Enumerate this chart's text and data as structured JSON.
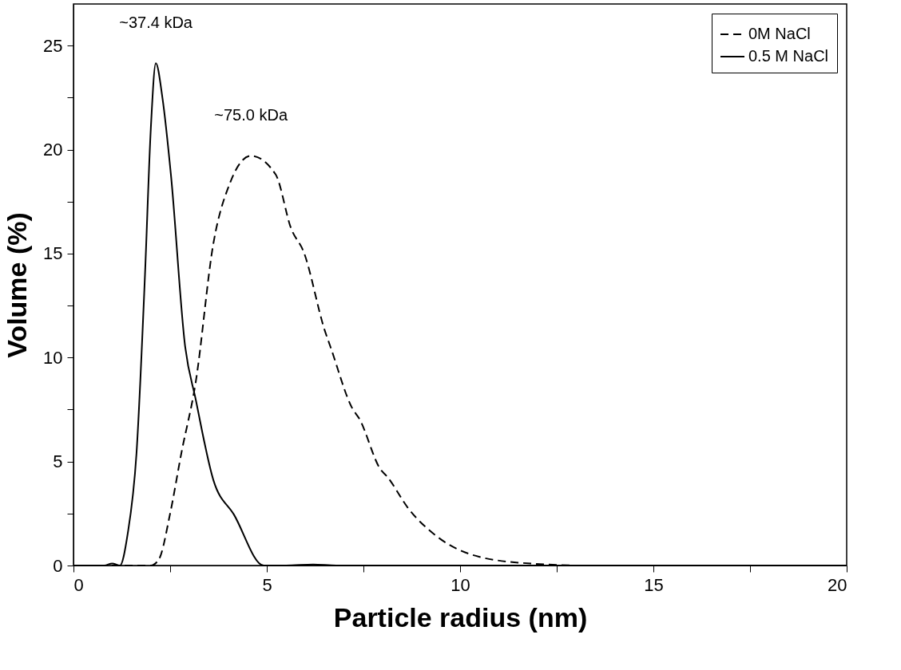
{
  "chart_data": {
    "type": "line",
    "xlabel": "Particle radius (nm)",
    "ylabel": "Volume (%)",
    "xlim": [
      0,
      20
    ],
    "ylim": [
      0,
      27
    ],
    "xticks": [
      0,
      {
        "value": 2.5,
        "label": null
      },
      5,
      {
        "value": 7.5,
        "label": null
      },
      10,
      {
        "value": 12.5,
        "label": null
      },
      15,
      {
        "value": 17.5,
        "label": null
      },
      20
    ],
    "yticks": [
      0,
      {
        "value": 2.5,
        "label": null
      },
      5,
      {
        "value": 7.5,
        "label": null
      },
      10,
      {
        "value": 12.5,
        "label": null
      },
      15,
      {
        "value": 17.5,
        "label": null
      },
      20,
      {
        "value": 22.5,
        "label": null
      },
      25
    ],
    "grid": false,
    "legend": "top right",
    "marker": "none",
    "series": [
      {
        "name": "0M NaCl",
        "color": "#000000",
        "line_style": "dashed",
        "x": [
          0,
          1,
          2,
          2.21,
          2.5,
          2.79,
          3.16,
          3.62,
          4.05,
          4.59,
          5.23,
          5.63,
          5.95,
          6.5,
          6.65,
          7.23,
          7.38,
          7.95,
          8.1,
          8.68,
          9.4,
          10.49,
          11.94,
          12.5,
          13,
          15,
          20
        ],
        "values": [
          0,
          0,
          0,
          0.3,
          2.5,
          5.4,
          8.8,
          15.5,
          18.4,
          19.7,
          18.8,
          16.2,
          15.1,
          11.3,
          10.5,
          7.5,
          7.1,
          4.6,
          4.3,
          2.7,
          1.4,
          0.42,
          0.08,
          0.03,
          0,
          0,
          0
        ]
      },
      {
        "name": "0.5 M NaCl",
        "color": "#000000",
        "line_style": "solid",
        "x": [
          0,
          0.8,
          1.0,
          1.2,
          1.4,
          1.63,
          1.85,
          2.0,
          2.13,
          2.3,
          2.52,
          2.89,
          3.16,
          3.62,
          4.15,
          4.92,
          5.5,
          6.2,
          6.8,
          10,
          20
        ],
        "values": [
          0,
          0,
          0.1,
          0,
          1.5,
          5.4,
          14,
          21,
          24.15,
          22.5,
          18.8,
          10.5,
          8.0,
          4.1,
          2.45,
          0,
          0,
          0.05,
          0,
          0,
          0
        ]
      }
    ],
    "annotations": [
      {
        "text": "~37.4 kDa",
        "x": 2.13,
        "y": 24.15
      },
      {
        "text": "~75.0 kDa",
        "x": 4.59,
        "y": 19.7
      }
    ]
  }
}
